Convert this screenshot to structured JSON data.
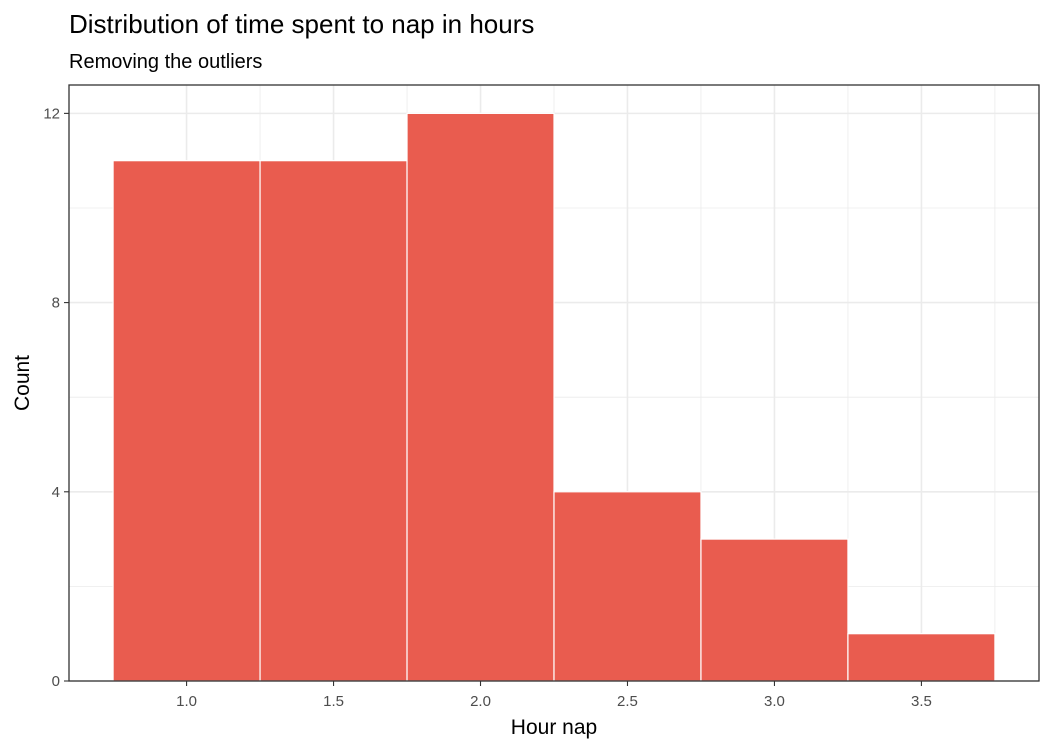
{
  "chart_data": {
    "type": "bar",
    "title": "Distribution of time spent to nap in hours",
    "subtitle": "Removing the outliers",
    "xlabel": "Hour nap",
    "ylabel": "Count",
    "bin_width": 0.5,
    "bins": [
      {
        "center": 1.0,
        "count": 11
      },
      {
        "center": 1.5,
        "count": 11
      },
      {
        "center": 2.0,
        "count": 12
      },
      {
        "center": 2.5,
        "count": 4
      },
      {
        "center": 3.0,
        "count": 3
      },
      {
        "center": 3.5,
        "count": 1
      }
    ],
    "xlim": [
      0.6,
      3.9
    ],
    "ylim": [
      0,
      12.6
    ],
    "x_ticks": [
      1.0,
      1.5,
      2.0,
      2.5,
      3.0,
      3.5
    ],
    "x_tick_labels": [
      "1.0",
      "1.5",
      "2.0",
      "2.5",
      "3.0",
      "3.5"
    ],
    "y_ticks": [
      0,
      4,
      8,
      12
    ],
    "y_tick_labels": [
      "0",
      "4",
      "8",
      "12"
    ],
    "bar_color": "#E95C4F",
    "bar_outline_color": "#FFFFFF",
    "grid": true,
    "grid_color": "#EBEBEB",
    "panel_border_color": "#333333",
    "legend": "none"
  }
}
